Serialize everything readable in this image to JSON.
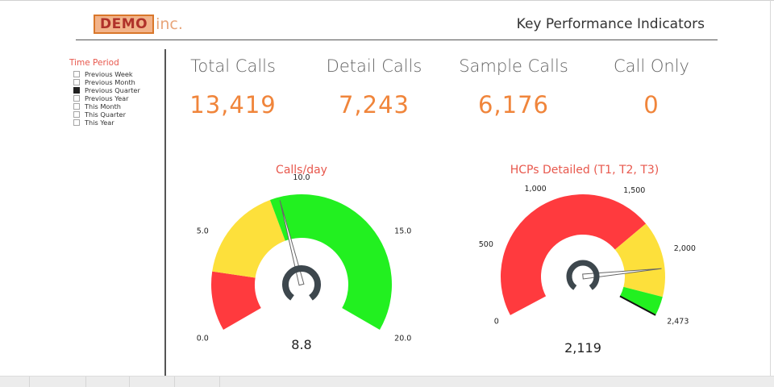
{
  "header": {
    "logo_main": "DEMO",
    "logo_suffix": "inc.",
    "title": "Key Performance Indicators"
  },
  "slicer": {
    "title": "Time Period",
    "items": [
      {
        "label": "Previous Week",
        "selected": false
      },
      {
        "label": "Previous Month",
        "selected": false
      },
      {
        "label": "Previous Quarter",
        "selected": true
      },
      {
        "label": "Previous Year",
        "selected": false
      },
      {
        "label": "This Month",
        "selected": false
      },
      {
        "label": "This Quarter",
        "selected": false
      },
      {
        "label": "This Year",
        "selected": false
      }
    ]
  },
  "kpis": [
    {
      "label": "Total Calls",
      "value": "13,419"
    },
    {
      "label": "Detail Calls",
      "value": "7,243"
    },
    {
      "label": "Sample Calls",
      "value": "6,176"
    },
    {
      "label": "Call Only",
      "value": "0"
    }
  ],
  "colors": {
    "accent_orange": "#f0853b",
    "title_red": "#e8584d",
    "gauge_red": "#ff3a3e",
    "gauge_yellow": "#fde03b",
    "gauge_green": "#22f020",
    "hub": "#3d474d"
  },
  "chart_data": [
    {
      "type": "gauge",
      "title": "Calls/day",
      "min": 0,
      "max": 20,
      "value": 8.8,
      "value_label": "8.8",
      "bands": [
        {
          "from": 0,
          "to": 3.2,
          "color": "#ff3a3e"
        },
        {
          "from": 3.2,
          "to": 8.3,
          "color": "#fde03b"
        },
        {
          "from": 8.3,
          "to": 20,
          "color": "#22f020"
        }
      ],
      "ticks": [
        {
          "value": 0,
          "label": "0.0"
        },
        {
          "value": 5,
          "label": "5.0"
        },
        {
          "value": 10,
          "label": "10.0"
        },
        {
          "value": 15,
          "label": "15.0"
        },
        {
          "value": 20,
          "label": "20.0"
        }
      ]
    },
    {
      "type": "gauge",
      "title": "HCPs Detailed (T1, T2, T3)",
      "min": 0,
      "max": 2473,
      "value": 2119,
      "value_label": "2,119",
      "bands": [
        {
          "from": 0,
          "to": 1760,
          "color": "#ff3a3e"
        },
        {
          "from": 1760,
          "to": 2330,
          "color": "#fde03b"
        },
        {
          "from": 2330,
          "to": 2473,
          "color": "#22f020"
        }
      ],
      "ticks": [
        {
          "value": 0,
          "label": "0"
        },
        {
          "value": 500,
          "label": "500"
        },
        {
          "value": 1000,
          "label": "1,000"
        },
        {
          "value": 1500,
          "label": "1,500"
        },
        {
          "value": 2000,
          "label": "2,000"
        },
        {
          "value": 2473,
          "label": "2,473"
        }
      ]
    }
  ]
}
